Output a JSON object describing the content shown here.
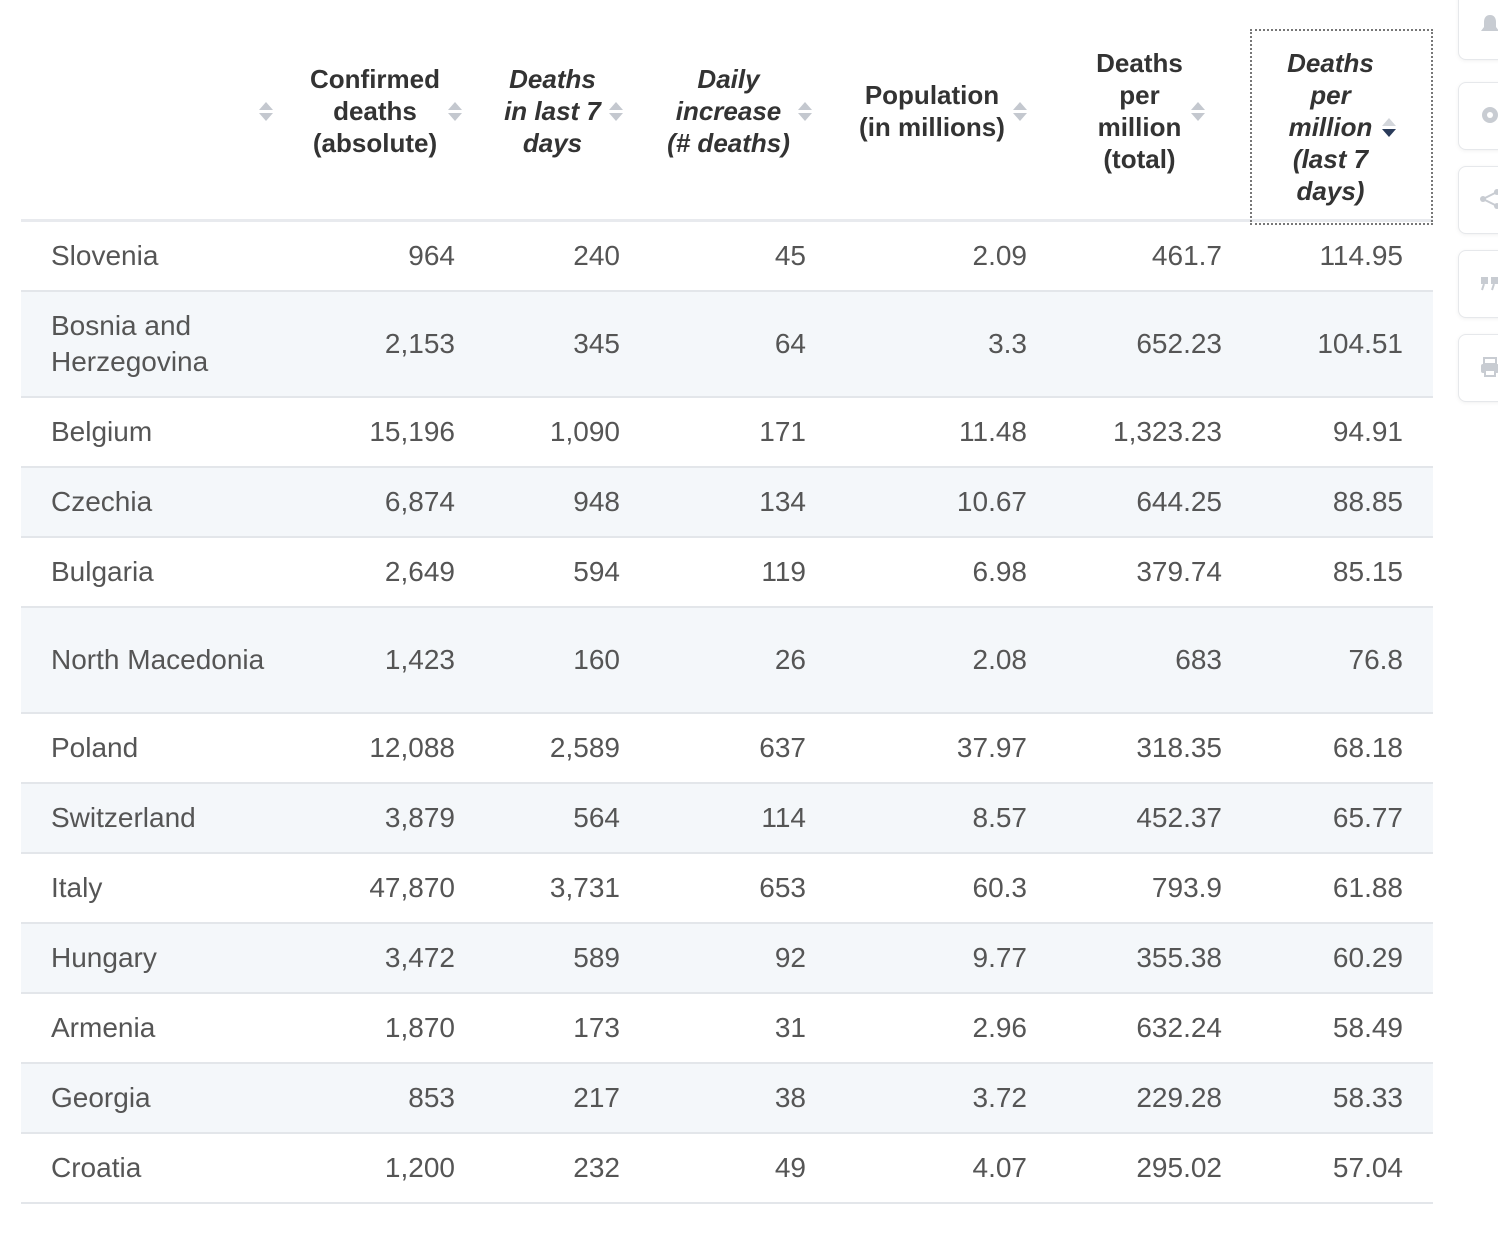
{
  "table": {
    "columns": [
      {
        "label": "",
        "italic": false,
        "active": false
      },
      {
        "label": "Confirmed\ndeaths\n(absolute)",
        "italic": false,
        "active": false
      },
      {
        "label": "Deaths\nin last 7\ndays",
        "italic": true,
        "active": false
      },
      {
        "label": "Daily\nincrease\n(# deaths)",
        "italic": true,
        "active": false
      },
      {
        "label": "Population\n(in millions)",
        "italic": false,
        "active": false
      },
      {
        "label": "Deaths\nper\nmillion\n(total)",
        "italic": false,
        "active": false
      },
      {
        "label": "Deaths\nper\nmillion\n(last 7\ndays)",
        "italic": true,
        "active": true
      }
    ],
    "rows": [
      {
        "name": "Slovenia",
        "confirmed": "964",
        "last7": "240",
        "daily": "45",
        "population": "2.09",
        "per_million_total": "461.7",
        "per_million_7d": "114.95"
      },
      {
        "name": "Bosnia and Herzegovina",
        "confirmed": "2,153",
        "last7": "345",
        "daily": "64",
        "population": "3.3",
        "per_million_total": "652.23",
        "per_million_7d": "104.51"
      },
      {
        "name": "Belgium",
        "confirmed": "15,196",
        "last7": "1,090",
        "daily": "171",
        "population": "11.48",
        "per_million_total": "1,323.23",
        "per_million_7d": "94.91"
      },
      {
        "name": "Czechia",
        "confirmed": "6,874",
        "last7": "948",
        "daily": "134",
        "population": "10.67",
        "per_million_total": "644.25",
        "per_million_7d": "88.85"
      },
      {
        "name": "Bulgaria",
        "confirmed": "2,649",
        "last7": "594",
        "daily": "119",
        "population": "6.98",
        "per_million_total": "379.74",
        "per_million_7d": "85.15"
      },
      {
        "name": "North Macedonia",
        "confirmed": "1,423",
        "last7": "160",
        "daily": "26",
        "population": "2.08",
        "per_million_total": "683",
        "per_million_7d": "76.8"
      },
      {
        "name": "Poland",
        "confirmed": "12,088",
        "last7": "2,589",
        "daily": "637",
        "population": "37.97",
        "per_million_total": "318.35",
        "per_million_7d": "68.18"
      },
      {
        "name": "Switzerland",
        "confirmed": "3,879",
        "last7": "564",
        "daily": "114",
        "population": "8.57",
        "per_million_total": "452.37",
        "per_million_7d": "65.77"
      },
      {
        "name": "Italy",
        "confirmed": "47,870",
        "last7": "3,731",
        "daily": "653",
        "population": "60.3",
        "per_million_total": "793.9",
        "per_million_7d": "61.88"
      },
      {
        "name": "Hungary",
        "confirmed": "3,472",
        "last7": "589",
        "daily": "92",
        "population": "9.77",
        "per_million_total": "355.38",
        "per_million_7d": "60.29"
      },
      {
        "name": "Armenia",
        "confirmed": "1,870",
        "last7": "173",
        "daily": "31",
        "population": "2.96",
        "per_million_total": "632.24",
        "per_million_7d": "58.49"
      },
      {
        "name": "Georgia",
        "confirmed": "853",
        "last7": "217",
        "daily": "38",
        "population": "3.72",
        "per_million_total": "229.28",
        "per_million_7d": "58.33"
      },
      {
        "name": "Croatia",
        "confirmed": "1,200",
        "last7": "232",
        "daily": "49",
        "population": "4.07",
        "per_million_total": "295.02",
        "per_million_7d": "57.04"
      }
    ]
  },
  "side_actions": [
    "bell-icon",
    "gear-icon",
    "share-icon",
    "quote-icon",
    "print-icon"
  ]
}
